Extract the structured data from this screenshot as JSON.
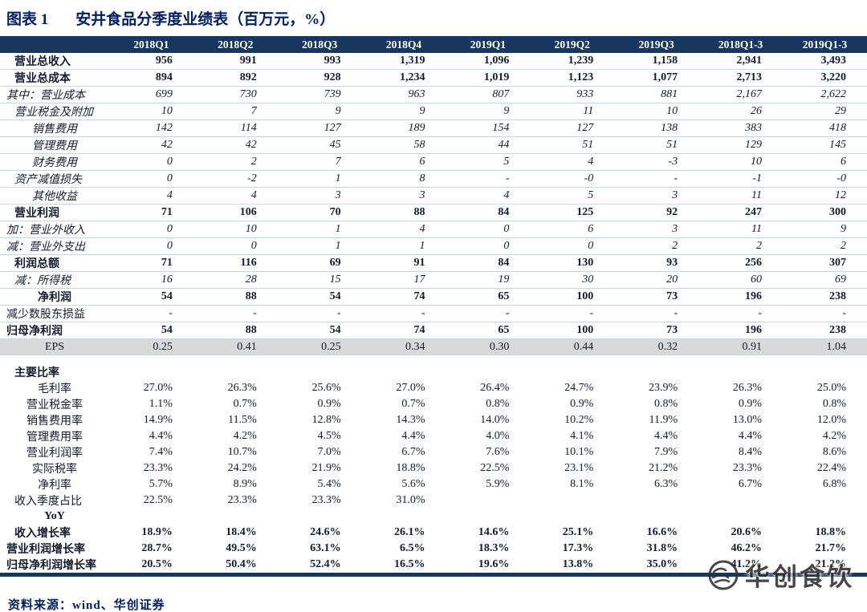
{
  "title": {
    "prefix": "图表 1",
    "text": "安井食品分季度业绩表（百万元，%）"
  },
  "source": {
    "text": "资料来源：wind、华创证券"
  },
  "watermark": {
    "text": "华创食饮"
  },
  "chart_data": {
    "type": "table",
    "title": "安井食品分季度业绩表（百万元，%）",
    "columns": [
      "",
      "2018Q1",
      "2018Q2",
      "2018Q3",
      "2018Q4",
      "2019Q1",
      "2019Q2",
      "2019Q3",
      "2018Q1-3",
      "2019Q1-3"
    ],
    "rows": [
      {
        "label": "营业总收入",
        "style": "bold",
        "align": "left",
        "indent": 1,
        "lined": true,
        "values": [
          "956",
          "991",
          "993",
          "1,319",
          "1,096",
          "1,239",
          "1,158",
          "2,941",
          "3,493"
        ]
      },
      {
        "label": "营业总成本",
        "style": "bold",
        "align": "left",
        "indent": 1,
        "lined": true,
        "values": [
          "894",
          "892",
          "928",
          "1,234",
          "1,019",
          "1,123",
          "1,077",
          "2,713",
          "3,220"
        ]
      },
      {
        "label": "其中：营业成本",
        "style": "italic",
        "align": "left",
        "indent": 0,
        "lined": true,
        "values": [
          "699",
          "730",
          "739",
          "963",
          "807",
          "933",
          "881",
          "2,167",
          "2,622"
        ]
      },
      {
        "label": "营业税金及附加",
        "style": "italic",
        "align": "left",
        "indent": 1,
        "lined": true,
        "values": [
          "10",
          "7",
          "9",
          "9",
          "9",
          "11",
          "10",
          "26",
          "29"
        ]
      },
      {
        "label": "销售费用",
        "style": "italic",
        "align": "center",
        "indent": 0,
        "lined": true,
        "values": [
          "142",
          "114",
          "127",
          "189",
          "154",
          "127",
          "138",
          "383",
          "418"
        ]
      },
      {
        "label": "管理费用",
        "style": "italic",
        "align": "center",
        "indent": 0,
        "lined": true,
        "values": [
          "42",
          "42",
          "45",
          "58",
          "44",
          "51",
          "51",
          "129",
          "145"
        ]
      },
      {
        "label": "财务费用",
        "style": "italic",
        "align": "center",
        "indent": 0,
        "lined": true,
        "values": [
          "0",
          "2",
          "7",
          "6",
          "5",
          "4",
          "-3",
          "10",
          "6"
        ]
      },
      {
        "label": "资产减值损失",
        "style": "italic",
        "align": "left",
        "indent": 1,
        "lined": true,
        "values": [
          "0",
          "-2",
          "1",
          "8",
          "-",
          "-0",
          "-",
          "-1",
          "-0"
        ]
      },
      {
        "label": "其他收益",
        "style": "italic",
        "align": "center",
        "indent": 0,
        "lined": true,
        "values": [
          "4",
          "4",
          "3",
          "3",
          "4",
          "5",
          "3",
          "11",
          "12"
        ]
      },
      {
        "label": "营业利润",
        "style": "bold",
        "align": "left",
        "indent": 1,
        "lined": true,
        "values": [
          "71",
          "106",
          "70",
          "88",
          "84",
          "125",
          "92",
          "247",
          "300"
        ]
      },
      {
        "label": "加：营业外收入",
        "style": "italic",
        "align": "left",
        "indent": 0,
        "lined": true,
        "values": [
          "0",
          "10",
          "1",
          "4",
          "0",
          "6",
          "3",
          "11",
          "9"
        ]
      },
      {
        "label": "减：营业外支出",
        "style": "italic",
        "align": "left",
        "indent": 0,
        "lined": true,
        "values": [
          "0",
          "0",
          "1",
          "1",
          "0",
          "0",
          "2",
          "2",
          "2"
        ]
      },
      {
        "label": "利润总额",
        "style": "bold",
        "align": "left",
        "indent": 1,
        "lined": true,
        "values": [
          "71",
          "116",
          "69",
          "91",
          "84",
          "130",
          "93",
          "256",
          "307"
        ]
      },
      {
        "label": "减：所得税",
        "style": "italic",
        "align": "left",
        "indent": 1,
        "lined": true,
        "values": [
          "16",
          "28",
          "15",
          "17",
          "19",
          "30",
          "20",
          "60",
          "69"
        ]
      },
      {
        "label": "净利润",
        "style": "bold",
        "align": "center",
        "indent": 0,
        "lined": true,
        "values": [
          "54",
          "88",
          "54",
          "74",
          "65",
          "100",
          "73",
          "196",
          "238"
        ]
      },
      {
        "label": "减少数股东损益",
        "style": "normal",
        "align": "left",
        "indent": 0,
        "lined": true,
        "values": [
          "-",
          "-",
          "-",
          "-",
          "-",
          "-",
          "-",
          "-",
          "-"
        ]
      },
      {
        "label": "归母净利润",
        "style": "bold",
        "align": "left",
        "indent": 0,
        "lined": true,
        "values": [
          "54",
          "88",
          "54",
          "74",
          "65",
          "100",
          "73",
          "196",
          "238"
        ]
      },
      {
        "label": "EPS",
        "style": "normal",
        "align": "center",
        "indent": 0,
        "lined": true,
        "bg": true,
        "values": [
          "0.25",
          "0.41",
          "0.25",
          "0.34",
          "0.30",
          "0.44",
          "0.32",
          "0.91",
          "1.04"
        ]
      },
      {
        "blank": true
      },
      {
        "label": "主要比率",
        "style": "bold",
        "align": "left",
        "indent": 1,
        "values": [
          "",
          "",
          "",
          "",
          "",
          "",
          "",
          "",
          ""
        ]
      },
      {
        "label": "毛利率",
        "style": "normal",
        "align": "center",
        "indent": 0,
        "values": [
          "27.0%",
          "26.3%",
          "25.6%",
          "27.0%",
          "26.4%",
          "24.7%",
          "23.9%",
          "26.3%",
          "25.0%"
        ]
      },
      {
        "label": "营业税金率",
        "style": "normal",
        "align": "center",
        "indent": 0,
        "values": [
          "1.1%",
          "0.7%",
          "0.9%",
          "0.7%",
          "0.8%",
          "0.9%",
          "0.8%",
          "0.9%",
          "0.8%"
        ]
      },
      {
        "label": "销售费用率",
        "style": "normal",
        "align": "center",
        "indent": 0,
        "values": [
          "14.9%",
          "11.5%",
          "12.8%",
          "14.3%",
          "14.0%",
          "10.2%",
          "11.9%",
          "13.0%",
          "12.0%"
        ]
      },
      {
        "label": "管理费用率",
        "style": "normal",
        "align": "center",
        "indent": 0,
        "values": [
          "4.4%",
          "4.2%",
          "4.5%",
          "4.4%",
          "4.0%",
          "4.1%",
          "4.4%",
          "4.4%",
          "4.2%"
        ]
      },
      {
        "label": "营业利润率",
        "style": "normal",
        "align": "center",
        "indent": 0,
        "values": [
          "7.4%",
          "10.7%",
          "7.0%",
          "6.7%",
          "7.6%",
          "10.1%",
          "7.9%",
          "8.4%",
          "8.6%"
        ]
      },
      {
        "label": "实际税率",
        "style": "normal",
        "align": "center",
        "indent": 0,
        "values": [
          "23.3%",
          "24.2%",
          "21.9%",
          "18.8%",
          "22.5%",
          "23.1%",
          "21.2%",
          "23.3%",
          "22.4%"
        ]
      },
      {
        "label": "净利率",
        "style": "normal",
        "align": "center",
        "indent": 0,
        "values": [
          "5.7%",
          "8.9%",
          "5.4%",
          "5.6%",
          "5.9%",
          "8.1%",
          "6.3%",
          "6.7%",
          "6.8%"
        ]
      },
      {
        "label": "收入季度占比",
        "style": "normal",
        "align": "left",
        "indent": 1,
        "values": [
          "22.5%",
          "23.3%",
          "23.3%",
          "31.0%",
          "",
          "",
          "",
          "",
          ""
        ]
      },
      {
        "label": "YoY",
        "style": "bold",
        "align": "center",
        "indent": 0,
        "values": [
          "",
          "",
          "",
          "",
          "",
          "",
          "",
          "",
          ""
        ]
      },
      {
        "label": "收入增长率",
        "style": "bold",
        "align": "left",
        "indent": 1,
        "values": [
          "18.9%",
          "18.4%",
          "24.6%",
          "26.1%",
          "14.6%",
          "25.1%",
          "16.6%",
          "20.6%",
          "18.8%"
        ]
      },
      {
        "label": "营业利润增长率",
        "style": "bold",
        "align": "left",
        "indent": 0,
        "values": [
          "28.7%",
          "49.5%",
          "63.1%",
          "6.5%",
          "18.3%",
          "17.3%",
          "31.8%",
          "46.2%",
          "21.7%"
        ]
      },
      {
        "label": "归母净利润增长率",
        "style": "bold",
        "align": "left",
        "indent": 0,
        "values": [
          "20.5%",
          "50.4%",
          "52.4%",
          "16.5%",
          "19.6%",
          "13.8%",
          "35.0%",
          "41.2%",
          "21.2%"
        ]
      }
    ]
  }
}
